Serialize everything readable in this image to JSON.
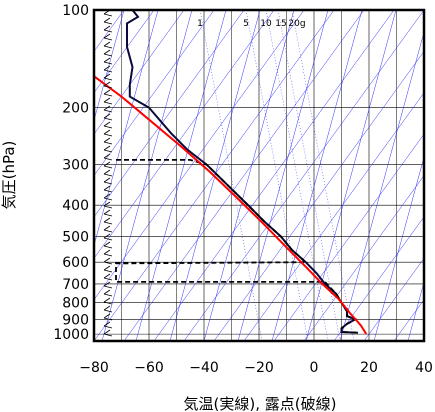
{
  "chart_data": {
    "type": "line",
    "title": "",
    "xlabel": "気温(実線), 露点(破線)",
    "ylabel": "気圧(hPa)",
    "xlim": [
      -80,
      40
    ],
    "ylim": [
      1050,
      100
    ],
    "y_scale": "log",
    "x_ticks": [
      -80,
      -60,
      -40,
      -20,
      0,
      20,
      40
    ],
    "x_tick_labels": [
      "−80",
      "−60",
      "−40",
      "−20",
      "0",
      "20",
      "40"
    ],
    "y_ticks": [
      100,
      200,
      300,
      400,
      500,
      600,
      700,
      800,
      900,
      1000
    ],
    "y_tick_labels": [
      "100",
      "200",
      "300",
      "400",
      "500",
      "600",
      "700",
      "800",
      "900",
      "1000"
    ],
    "grid": true,
    "mixing_ratio_labels": [
      "1",
      "5",
      "10",
      "15",
      "20g"
    ],
    "series": [
      {
        "style": "solid",
        "color": "#0a0a3c",
        "points": [
          [
            -66,
            100
          ],
          [
            -64,
            105
          ],
          [
            -68,
            110
          ],
          [
            -68,
            130
          ],
          [
            -66,
            150
          ],
          [
            -67,
            170
          ],
          [
            -67,
            185
          ],
          [
            -60,
            200
          ],
          [
            -52,
            240
          ],
          [
            -46,
            270
          ],
          [
            -39,
            300
          ],
          [
            -31,
            350
          ],
          [
            -24,
            400
          ],
          [
            -18,
            450
          ],
          [
            -12,
            500
          ],
          [
            -8,
            550
          ],
          [
            -3,
            600
          ],
          [
            1,
            650
          ],
          [
            4,
            700
          ],
          [
            8,
            750
          ],
          [
            10,
            800
          ],
          [
            12,
            850
          ],
          [
            12,
            880
          ],
          [
            15,
            900
          ],
          [
            12,
            930
          ],
          [
            10,
            960
          ],
          [
            10,
            985
          ],
          [
            16,
            990
          ]
        ]
      },
      {
        "style": "dashed",
        "color": "#000000",
        "points": [
          [
            -72,
            290
          ],
          [
            -45,
            290
          ],
          [
            -39,
            300
          ],
          [
            -31,
            350
          ],
          [
            -24,
            400
          ],
          [
            -18,
            450
          ],
          [
            -12,
            500
          ],
          [
            -8,
            550
          ],
          [
            -3,
            600
          ],
          [
            -72,
            605
          ],
          [
            -72,
            690
          ],
          [
            4,
            690
          ],
          [
            8,
            750
          ],
          [
            10,
            800
          ],
          [
            12,
            850
          ],
          [
            12,
            880
          ],
          [
            15,
            900
          ],
          [
            12,
            930
          ],
          [
            10,
            960
          ],
          [
            10,
            985
          ],
          [
            16,
            990
          ]
        ]
      },
      {
        "style": "solid",
        "color": "#ff0000",
        "points": [
          [
            -80,
            160
          ],
          [
            -70,
            185
          ],
          [
            -58,
            225
          ],
          [
            -48,
            265
          ],
          [
            -38,
            315
          ],
          [
            -28,
            380
          ],
          [
            -18,
            460
          ],
          [
            -10,
            540
          ],
          [
            -3,
            620
          ],
          [
            3,
            700
          ],
          [
            9,
            780
          ],
          [
            13,
            860
          ],
          [
            17,
            940
          ],
          [
            19,
            1000
          ]
        ]
      }
    ]
  }
}
